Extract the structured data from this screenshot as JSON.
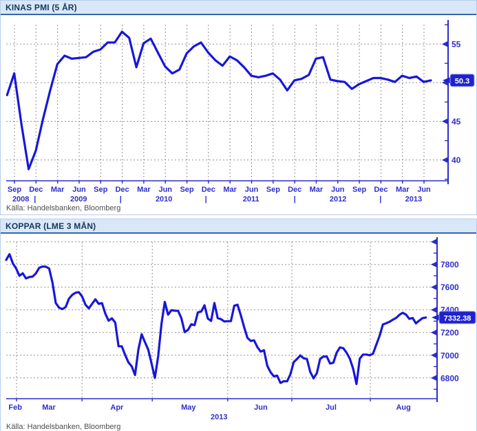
{
  "chart_data": [
    {
      "type": "line",
      "title": "KINAS PMI (5 ÅR)",
      "source": "Källa: Handelsbanken, Bloomberg",
      "last_value_label": "50.3",
      "line_color": "#1717d9",
      "series": [
        {
          "name": "Kinas PMI",
          "frequency": "monthly",
          "start": "2008-08",
          "end": "2013-07",
          "values": [
            48.4,
            51.2,
            44.6,
            38.8,
            41.2,
            45.3,
            49.0,
            52.4,
            53.5,
            53.1,
            53.2,
            53.3,
            54.0,
            54.3,
            55.2,
            55.2,
            56.6,
            55.8,
            52.0,
            55.1,
            55.7,
            53.9,
            52.1,
            51.2,
            51.7,
            53.8,
            54.7,
            55.2,
            53.9,
            52.9,
            52.2,
            53.4,
            52.9,
            52.0,
            50.9,
            50.7,
            50.9,
            51.2,
            50.4,
            49.0,
            50.3,
            50.5,
            51.0,
            53.1,
            53.3,
            50.4,
            50.2,
            50.1,
            49.2,
            49.8,
            50.2,
            50.6,
            50.6,
            50.4,
            50.1,
            50.9,
            50.6,
            50.8,
            50.1,
            50.3
          ]
        }
      ],
      "y_axis": {
        "side": "right",
        "min": 37.3,
        "max": 57.5,
        "gridlines": [
          55,
          50,
          45,
          40
        ],
        "major_ticks": [
          {
            "value": 55,
            "label": "55"
          },
          {
            "value": 50,
            "label": "50"
          },
          {
            "value": 45,
            "label": "45"
          },
          {
            "value": 40,
            "label": "40"
          }
        ],
        "minor_ticks": [
          57.5,
          52.5,
          47.5,
          42.5,
          37.5
        ]
      },
      "x_axis": {
        "series_span": [
          0.002,
          0.961
        ],
        "ticks": [
          0.0187,
          0.0675,
          0.1163,
          0.1651,
          0.2138,
          0.2626,
          0.3114,
          0.3602,
          0.409,
          0.4577,
          0.5065,
          0.5553,
          0.6041,
          0.6529,
          0.7016,
          0.7504,
          0.7992,
          0.848,
          0.8968,
          0.9455
        ],
        "month_labels": [
          {
            "f": 0.0187,
            "label": "Sep"
          },
          {
            "f": 0.0675,
            "label": "Dec"
          },
          {
            "f": 0.1163,
            "label": "Mar"
          },
          {
            "f": 0.1651,
            "label": "Jun"
          },
          {
            "f": 0.2138,
            "label": "Sep"
          },
          {
            "f": 0.2626,
            "label": "Dec"
          },
          {
            "f": 0.3114,
            "label": "Mar"
          },
          {
            "f": 0.3602,
            "label": "Jun"
          },
          {
            "f": 0.409,
            "label": "Sep"
          },
          {
            "f": 0.4577,
            "label": "Dec"
          },
          {
            "f": 0.5065,
            "label": "Mar"
          },
          {
            "f": 0.5553,
            "label": "Jun"
          },
          {
            "f": 0.6041,
            "label": "Sep"
          },
          {
            "f": 0.6529,
            "label": "Dec"
          },
          {
            "f": 0.7016,
            "label": "Mar"
          },
          {
            "f": 0.7504,
            "label": "Jun"
          },
          {
            "f": 0.7992,
            "label": "Sep"
          },
          {
            "f": 0.848,
            "label": "Dec"
          },
          {
            "f": 0.8968,
            "label": "Mar"
          },
          {
            "f": 0.9455,
            "label": "Jun"
          }
        ],
        "year_labels": [
          {
            "f": 0.033,
            "label": "2008"
          },
          {
            "f": 0.164,
            "label": "2009"
          },
          {
            "f": 0.357,
            "label": "2010"
          },
          {
            "f": 0.554,
            "label": "2011"
          },
          {
            "f": 0.751,
            "label": "2012"
          },
          {
            "f": 0.922,
            "label": "2013"
          }
        ],
        "year_separators": [
          0.065,
          0.259,
          0.452,
          0.653,
          0.847
        ]
      }
    },
    {
      "type": "line",
      "title": "KOPPAR (LME 3 MÅN)",
      "source": "Källa: Handelsbanken, Bloomberg",
      "last_value_label": "7332.38",
      "line_color": "#1717d9",
      "series": [
        {
          "name": "Koppar LME 3 mån",
          "frequency": "daily",
          "start": "2013-02",
          "end": "2013-08",
          "values": [
            7840,
            7890,
            7810,
            7765,
            7700,
            7722,
            7677,
            7689,
            7693,
            7722,
            7770,
            7782,
            7780,
            7764,
            7641,
            7460,
            7419,
            7406,
            7425,
            7498,
            7532,
            7551,
            7555,
            7516,
            7445,
            7412,
            7453,
            7493,
            7453,
            7459,
            7367,
            7304,
            7325,
            7288,
            7079,
            7078,
            7003,
            6937,
            6902,
            6826,
            7048,
            7185,
            7115,
            7049,
            6927,
            6800,
            6990,
            7276,
            7470,
            7357,
            7397,
            7392,
            7391,
            7327,
            7204,
            7223,
            7273,
            7265,
            7378,
            7385,
            7440,
            7324,
            7302,
            7460,
            7326,
            7318,
            7297,
            7300,
            7300,
            7436,
            7445,
            7352,
            7247,
            7153,
            7126,
            7131,
            7072,
            7032,
            7044,
            6907,
            6850,
            6814,
            6820,
            6756,
            6771,
            6770,
            6832,
            6939,
            6967,
            6998,
            6973,
            6967,
            6854,
            6796,
            6842,
            6968,
            6988,
            6989,
            6927,
            6934,
            7023,
            7069,
            7062,
            7022,
            6969,
            6880,
            6746,
            6970,
            7006,
            7006,
            7000,
            7013,
            7093,
            7171,
            7271,
            7282,
            7295,
            7313,
            7329,
            7356,
            7374,
            7358,
            7320,
            7329,
            7281,
            7305,
            7327,
            7332.38
          ]
        }
      ],
      "y_axis": {
        "side": "right",
        "min": 6617,
        "max": 7998,
        "gridlines": [
          8000,
          7800,
          7600,
          7400,
          7200,
          7000,
          6800
        ],
        "major_ticks": [
          {
            "value": 8000,
            "label": ""
          },
          {
            "value": 7800,
            "label": "7800"
          },
          {
            "value": 7600,
            "label": "7600"
          },
          {
            "value": 7400,
            "label": "7400"
          },
          {
            "value": 7200,
            "label": "7200"
          },
          {
            "value": 7000,
            "label": "7000"
          },
          {
            "value": 6800,
            "label": "6800"
          }
        ],
        "minor_ticks": [
          7900,
          7700,
          7500,
          7300,
          7100,
          6900,
          6700
        ]
      },
      "x_axis": {
        "series_span": [
          0.0,
          0.974
        ],
        "ticks": [
          0.024,
          0.176,
          0.339,
          0.514,
          0.663,
          0.845
        ],
        "month_labels": [
          {
            "f": 0.021,
            "label": "Feb"
          },
          {
            "f": 0.099,
            "label": "Mar"
          },
          {
            "f": 0.257,
            "label": "Apr"
          },
          {
            "f": 0.423,
            "label": "May"
          },
          {
            "f": 0.591,
            "label": "Jun"
          },
          {
            "f": 0.754,
            "label": "Jul"
          },
          {
            "f": 0.922,
            "label": "Aug"
          }
        ],
        "year_labels": [
          {
            "f": 0.494,
            "label": "2013"
          }
        ],
        "year_separators": []
      }
    }
  ],
  "colors": {
    "line": "#1717d9",
    "axis": "#2b2bcc",
    "grid": "#909090",
    "title_text": "#16365c",
    "title_bg": "#d9e8f8",
    "title_underline": "#3565b0",
    "value_box": "#2121ce",
    "source_text": "#4d4d4d"
  }
}
